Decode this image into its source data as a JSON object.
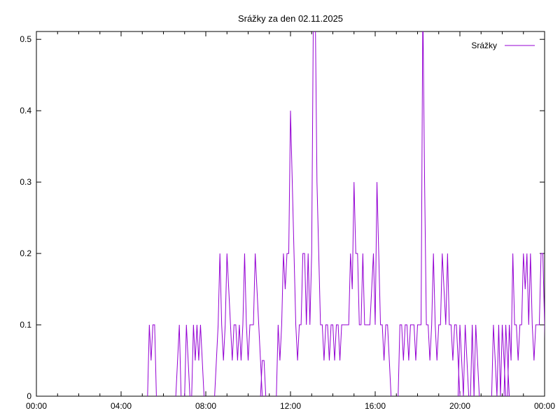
{
  "colors": {
    "series": "#9400D3",
    "axis": "#000000",
    "background": "#ffffff"
  },
  "chart_data": {
    "type": "line",
    "title": "Srážky za den 02.11.2025",
    "xlabel": "",
    "ylabel": "",
    "grid": false,
    "legend_position": "top-right-inside",
    "sample_interval_minutes": 5,
    "x": {
      "range_minutes": [
        0,
        1440
      ],
      "major_ticks": [
        {
          "minute": 0,
          "label": "00:00"
        },
        {
          "minute": 240,
          "label": "04:00"
        },
        {
          "minute": 480,
          "label": "08:00"
        },
        {
          "minute": 720,
          "label": "12:00"
        },
        {
          "minute": 960,
          "label": "16:00"
        },
        {
          "minute": 1200,
          "label": "20:00"
        },
        {
          "minute": 1440,
          "label": "00:00"
        }
      ],
      "minor_tick_every_minutes": 60
    },
    "y": {
      "range": [
        0,
        0.511
      ],
      "ticks": [
        {
          "value": 0,
          "label": "0"
        },
        {
          "value": 0.1,
          "label": "0.1"
        },
        {
          "value": 0.2,
          "label": "0.2"
        },
        {
          "value": 0.3,
          "label": "0.3"
        },
        {
          "value": 0.4,
          "label": "0.4"
        },
        {
          "value": 0.5,
          "label": "0.5"
        }
      ]
    },
    "series": [
      {
        "name": "Srážky",
        "color": "#9400D3",
        "style": "lines",
        "runs": [
          [
            [
              320,
              0.1
            ],
            [
              325,
              0.05
            ],
            [
              330,
              0.1
            ],
            [
              335,
              0.1
            ]
          ],
          [
            [
              400,
              0.05
            ],
            [
              405,
              0.1
            ]
          ],
          [
            [
              425,
              0.1
            ],
            [
              430,
              0.05
            ]
          ],
          [
            [
              445,
              0.1
            ],
            [
              450,
              0.05
            ],
            [
              455,
              0.1
            ],
            [
              460,
              0.05
            ],
            [
              465,
              0.1
            ],
            [
              470,
              0.05
            ]
          ],
          [
            [
              510,
              0.05
            ],
            [
              515,
              0.1
            ],
            [
              520,
              0.2
            ],
            [
              525,
              0.1
            ],
            [
              530,
              0.05
            ],
            [
              535,
              0.1
            ],
            [
              540,
              0.2
            ],
            [
              545,
              0.15
            ],
            [
              550,
              0.1
            ],
            [
              555,
              0.05
            ],
            [
              560,
              0.1
            ],
            [
              565,
              0.1
            ],
            [
              570,
              0.05
            ],
            [
              575,
              0.1
            ],
            [
              580,
              0.05
            ],
            [
              585,
              0.1
            ],
            [
              590,
              0.2
            ],
            [
              595,
              0.1
            ],
            [
              600,
              0.05
            ],
            [
              605,
              0.1
            ],
            [
              610,
              0.1
            ],
            [
              615,
              0.1
            ],
            [
              620,
              0.2
            ],
            [
              625,
              0.15
            ],
            [
              630,
              0.1
            ],
            [
              635,
              0.05
            ]
          ],
          [
            [
              640,
              0.05
            ],
            [
              645,
              0.05
            ]
          ],
          [
            [
              685,
              0.1
            ],
            [
              690,
              0.05
            ],
            [
              695,
              0.1
            ],
            [
              700,
              0.2
            ],
            [
              705,
              0.15
            ],
            [
              710,
              0.2
            ],
            [
              715,
              0.2
            ],
            [
              720,
              0.4
            ],
            [
              725,
              0.3
            ],
            [
              730,
              0.2
            ],
            [
              735,
              0.1
            ],
            [
              740,
              0.05
            ],
            [
              745,
              0.1
            ],
            [
              750,
              0.1
            ],
            [
              755,
              0.2
            ],
            [
              760,
              0.2
            ],
            [
              765,
              0.1
            ],
            [
              770,
              0.2
            ],
            [
              775,
              0.1
            ],
            [
              780,
              0.2
            ],
            [
              785,
              0.55
            ],
            [
              790,
              0.55
            ],
            [
              795,
              0.3
            ],
            [
              800,
              0.2
            ],
            [
              805,
              0.1
            ],
            [
              810,
              0.1
            ],
            [
              815,
              0.05
            ],
            [
              820,
              0.1
            ],
            [
              825,
              0.1
            ],
            [
              830,
              0.05
            ],
            [
              835,
              0.1
            ],
            [
              840,
              0.1
            ],
            [
              845,
              0.05
            ],
            [
              850,
              0.1
            ],
            [
              855,
              0.1
            ],
            [
              860,
              0.05
            ],
            [
              865,
              0.1
            ],
            [
              870,
              0.1
            ],
            [
              875,
              0.1
            ],
            [
              880,
              0.1
            ],
            [
              885,
              0.1
            ],
            [
              890,
              0.2
            ],
            [
              895,
              0.15
            ],
            [
              900,
              0.3
            ],
            [
              905,
              0.2
            ],
            [
              910,
              0.2
            ],
            [
              915,
              0.1
            ],
            [
              920,
              0.1
            ],
            [
              925,
              0.2
            ],
            [
              930,
              0.1
            ],
            [
              935,
              0.1
            ],
            [
              940,
              0.1
            ],
            [
              945,
              0.1
            ],
            [
              950,
              0.15
            ],
            [
              955,
              0.2
            ],
            [
              960,
              0.1
            ],
            [
              965,
              0.3
            ],
            [
              970,
              0.2
            ],
            [
              975,
              0.1
            ],
            [
              980,
              0.1
            ],
            [
              985,
              0.05
            ],
            [
              990,
              0.1
            ],
            [
              995,
              0.1
            ],
            [
              1000,
              0.05
            ]
          ],
          [
            [
              1030,
              0.1
            ],
            [
              1035,
              0.1
            ],
            [
              1040,
              0.05
            ],
            [
              1045,
              0.1
            ],
            [
              1050,
              0.1
            ],
            [
              1055,
              0.05
            ],
            [
              1060,
              0.1
            ],
            [
              1065,
              0.1
            ],
            [
              1070,
              0.1
            ],
            [
              1075,
              0.05
            ],
            [
              1080,
              0.1
            ],
            [
              1085,
              0.1
            ],
            [
              1090,
              0.1
            ],
            [
              1095,
              0.55
            ],
            [
              1100,
              0.3
            ],
            [
              1105,
              0.1
            ],
            [
              1110,
              0.1
            ],
            [
              1115,
              0.05
            ],
            [
              1120,
              0.1
            ],
            [
              1125,
              0.2
            ],
            [
              1130,
              0.1
            ],
            [
              1135,
              0.05
            ],
            [
              1140,
              0.1
            ],
            [
              1145,
              0.1
            ],
            [
              1150,
              0.2
            ],
            [
              1155,
              0.15
            ],
            [
              1160,
              0.1
            ],
            [
              1165,
              0.2
            ],
            [
              1170,
              0.1
            ],
            [
              1175,
              0.1
            ],
            [
              1180,
              0.05
            ],
            [
              1185,
              0.1
            ],
            [
              1190,
              0.1
            ],
            [
              1195,
              0.05
            ]
          ],
          [
            [
              1200,
              0.1
            ],
            [
              1205,
              0.05
            ]
          ],
          [
            [
              1215,
              0.1
            ],
            [
              1220,
              0.05
            ]
          ],
          [
            [
              1235,
              0.1
            ]
          ],
          [
            [
              1245,
              0.1
            ],
            [
              1250,
              0.05
            ]
          ],
          [
            [
              1295,
              0.1
            ],
            [
              1300,
              0.05
            ]
          ],
          [
            [
              1310,
              0.1
            ]
          ],
          [
            [
              1320,
              0.1
            ],
            [
              1325,
              0.05
            ]
          ],
          [
            [
              1330,
              0.1
            ],
            [
              1335,
              0.05
            ]
          ],
          [
            [
              1340,
              0.1
            ],
            [
              1345,
              0.05
            ],
            [
              1350,
              0.2
            ],
            [
              1355,
              0.1
            ],
            [
              1360,
              0.1
            ],
            [
              1365,
              0.05
            ],
            [
              1370,
              0.1
            ],
            [
              1375,
              0.1
            ],
            [
              1380,
              0.2
            ],
            [
              1385,
              0.15
            ],
            [
              1390,
              0.2
            ],
            [
              1395,
              0.1
            ],
            [
              1400,
              0.2
            ],
            [
              1405,
              0.1
            ],
            [
              1410,
              0.05
            ],
            [
              1415,
              0.1
            ],
            [
              1420,
              0.1
            ],
            [
              1425,
              0.1
            ],
            [
              1430,
              0.2
            ],
            [
              1435,
              0.2
            ],
            [
              1440,
              0.1
            ]
          ]
        ]
      }
    ]
  }
}
